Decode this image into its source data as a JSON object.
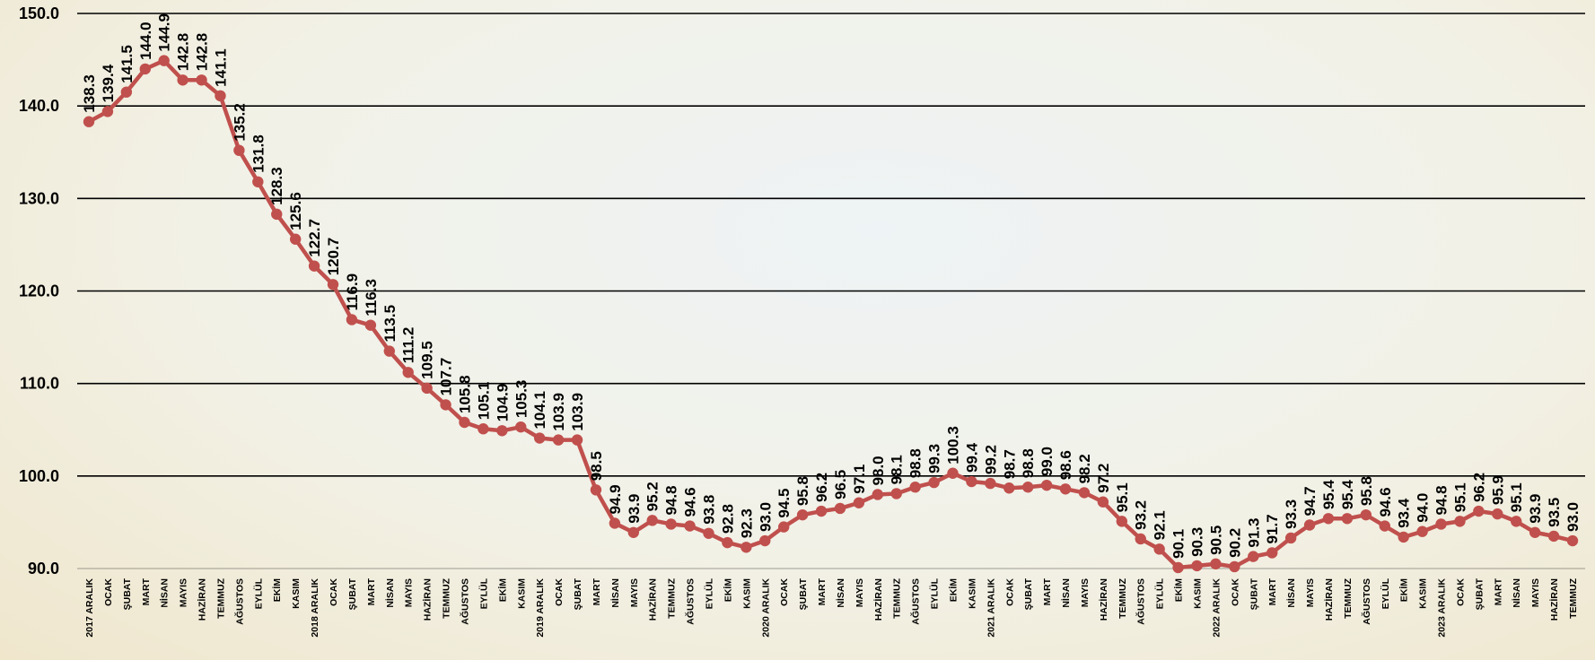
{
  "chart_data": {
    "type": "line",
    "title": "",
    "xlabel": "",
    "ylabel": "",
    "ylim": [
      90,
      150
    ],
    "yticks": [
      "90.0",
      "100.0",
      "110.0",
      "120.0",
      "130.0",
      "140.0",
      "150.0"
    ],
    "grid": true,
    "legend": "none",
    "colors": {
      "line": "#c0504d",
      "grid": "#000000"
    },
    "categories": [
      "2017 ARALIK",
      "OCAK",
      "ŞUBAT",
      "MART",
      "NİSAN",
      "MAYIS",
      "HAZİRAN",
      "TEMMUZ",
      "AĞUSTOS",
      "EYLÜL",
      "EKİM",
      "KASIM",
      "2018 ARALIK",
      "OCAK",
      "ŞUBAT",
      "MART",
      "NİSAN",
      "MAYIS",
      "HAZİRAN",
      "TEMMUZ",
      "AĞUSTOS",
      "EYLÜL",
      "EKİM",
      "KASIM",
      "2019 ARALIK",
      "OCAK",
      "ŞUBAT",
      "MART",
      "NİSAN",
      "MAYIS",
      "HAZİRAN",
      "TEMMUZ",
      "AĞUSTOS",
      "EYLÜL",
      "EKİM",
      "KASIM",
      "2020 ARALIK",
      "OCAK",
      "ŞUBAT",
      "MART",
      "NİSAN",
      "MAYIS",
      "HAZİRAN",
      "TEMMUZ",
      "AĞUSTOS",
      "EYLÜL",
      "EKİM",
      "KASIM",
      "2021 ARALIK",
      "OCAK",
      "ŞUBAT",
      "MART",
      "NİSAN",
      "MAYIS",
      "HAZİRAN",
      "TEMMUZ",
      "AĞUSTOS",
      "EYLÜL",
      "EKİM",
      "KASIM",
      "2022 ARALIK",
      "OCAK",
      "ŞUBAT",
      "MART",
      "NİSAN",
      "MAYIS",
      "HAZİRAN",
      "TEMMUZ",
      "AĞUSTOS",
      "EYLÜL",
      "EKİM",
      "KASIM",
      "2023 ARALIK",
      "OCAK",
      "ŞUBAT",
      "MART",
      "NİSAN",
      "MAYIS",
      "HAZİRAN",
      "TEMMUZ"
    ],
    "values": [
      138.3,
      139.4,
      141.5,
      144.0,
      144.9,
      142.8,
      142.8,
      141.1,
      135.2,
      131.8,
      128.3,
      125.6,
      122.7,
      120.7,
      116.9,
      116.3,
      113.5,
      111.2,
      109.5,
      107.7,
      105.8,
      105.1,
      104.9,
      105.3,
      104.1,
      103.9,
      103.9,
      98.5,
      94.9,
      93.9,
      95.2,
      94.8,
      94.6,
      93.8,
      92.8,
      92.3,
      93.0,
      94.5,
      95.8,
      96.2,
      96.5,
      97.1,
      98.0,
      98.1,
      98.8,
      99.3,
      100.3,
      99.4,
      99.2,
      98.7,
      98.8,
      99.0,
      98.6,
      98.2,
      97.2,
      95.1,
      93.2,
      92.1,
      90.1,
      90.3,
      90.5,
      90.2,
      91.3,
      91.7,
      93.3,
      94.7,
      95.4,
      95.4,
      95.8,
      94.6,
      93.4,
      94.0,
      94.8,
      95.1,
      96.2,
      95.9,
      95.1,
      93.9,
      93.5,
      93.0
    ],
    "data_labels": [
      "138.3",
      "139.4",
      "141.5",
      "144.0",
      "144.9",
      "142.8",
      "142.8",
      "141.1",
      "135.2",
      "131.8",
      "128.3",
      "125.6",
      "122.7",
      "120.7",
      "116.9",
      "116.3",
      "113.5",
      "111.2",
      "109.5",
      "107.7",
      "105.8",
      "105.1",
      "104.9",
      "105.3",
      "104.1",
      "103.9",
      "103.9",
      "98.5",
      "94.9",
      "93.9",
      "95.2",
      "94.8",
      "94.6",
      "93.8",
      "92.8",
      "92.3",
      "93.0",
      "94.5",
      "95.8",
      "96.2",
      "96.5",
      "97.1",
      "98.0",
      "98.1",
      "98.8",
      "99.3",
      "100.3",
      "99.4",
      "99.2",
      "98.7",
      "98.8",
      "99.0",
      "98.6",
      "98.2",
      "97.2",
      "95.1",
      "93.2",
      "92.1",
      "90.1",
      "90.3",
      "90.5",
      "90.2",
      "91.3",
      "91.7",
      "93.3",
      "94.7",
      "95.4",
      "95.4",
      "95.8",
      "94.6",
      "93.4",
      "94.0",
      "94.8",
      "95.1",
      "96.2",
      "95.9",
      "95.1",
      "93.9",
      "93.5",
      "93.0"
    ]
  }
}
